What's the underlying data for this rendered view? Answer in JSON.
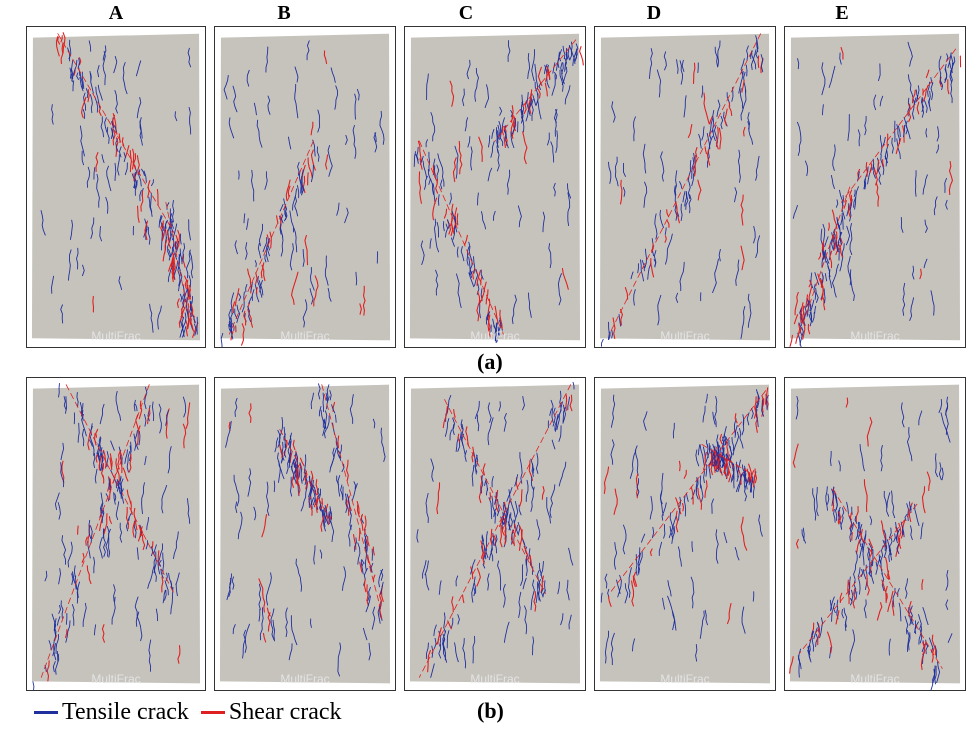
{
  "columns": [
    "A",
    "B",
    "C",
    "D",
    "E"
  ],
  "row_labels": [
    "(a)",
    "(b)"
  ],
  "watermark": "MultiFrac",
  "legend": [
    {
      "label": "Tensile crack",
      "color": "#1f2f9e"
    },
    {
      "label": "Shear crack",
      "color": "#e02020"
    }
  ],
  "colors": {
    "specimen": "#c6c3bc",
    "frame": "#333333"
  }
}
